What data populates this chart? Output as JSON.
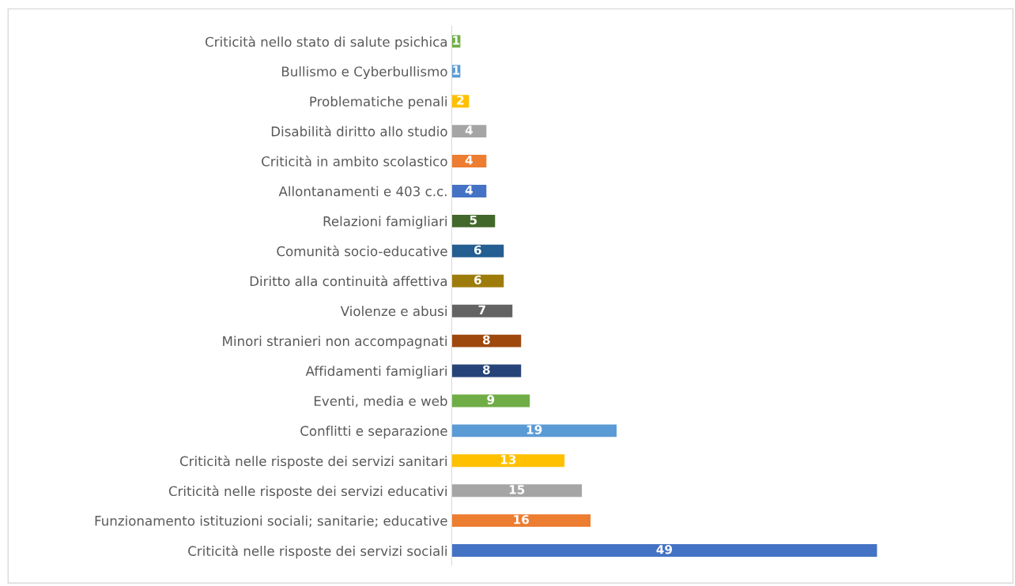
{
  "chart_data": {
    "type": "bar",
    "orientation": "horizontal",
    "tick_labels": "y",
    "data_labels": true,
    "grid": false,
    "legend": false,
    "categories": [
      "Criticità nello stato di salute psichica",
      "Bullismo e Cyberbullismo",
      "Problematiche penali",
      "Disabilità diritto allo studio",
      "Criticità in ambito scolastico",
      "Allontanamenti e 403 c.c.",
      "Relazioni famigliari",
      "Comunità socio-educative",
      "Diritto alla continuità affettiva",
      "Violenze e abusi",
      "Minori stranieri non accompagnati",
      "Affidamenti famigliari",
      "Eventi, media e web",
      "Conflitti e separazione",
      "Criticità nelle risposte dei servizi sanitari",
      "Criticità nelle risposte dei servizi educativi",
      "Funzionamento istituzioni sociali; sanitarie; educative",
      "Criticità nelle risposte dei servizi sociali"
    ],
    "values": [
      1,
      1,
      2,
      4,
      4,
      4,
      5,
      6,
      6,
      7,
      8,
      8,
      9,
      19,
      13,
      15,
      16,
      49
    ],
    "colors": [
      "#70ad47",
      "#5b9bd5",
      "#ffc000",
      "#a5a5a5",
      "#ed7d31",
      "#4472c4",
      "#43682b",
      "#255e91",
      "#9e7c0c",
      "#636363",
      "#9e480e",
      "#264478",
      "#70ad47",
      "#5b9bd5",
      "#ffc000",
      "#a5a5a5",
      "#ed7d31",
      "#4472c4"
    ]
  }
}
